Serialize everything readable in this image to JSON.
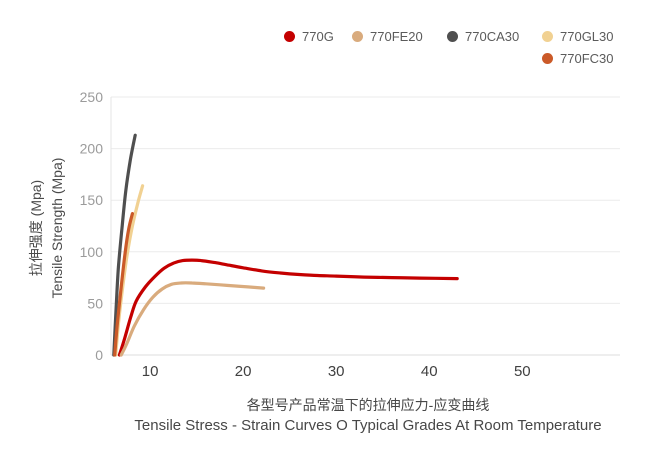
{
  "chart_data": {
    "type": "line",
    "title_zh": "各型号产品常温下的拉伸应力-应变曲线",
    "title_en": "Tensile Stress - Strain Curves O Typical Grades At Room Temperature",
    "ylabel_zh": "拉伸强度 (Mpa)",
    "ylabel_en": "Tensile Strength (Mpa)",
    "xlabel": "",
    "xlim": [
      5.8,
      60.5
    ],
    "ylim": [
      0,
      250
    ],
    "x_ticks": [
      10,
      20,
      30,
      40,
      50
    ],
    "y_ticks": [
      0,
      50,
      100,
      150,
      200,
      250
    ],
    "grid": true,
    "legend_position": "top-right",
    "series": [
      {
        "name": "770G",
        "color": "#c40000",
        "points": [
          [
            6.7,
            0
          ],
          [
            7.2,
            14
          ],
          [
            7.9,
            36
          ],
          [
            8.5,
            52
          ],
          [
            9.5,
            66
          ],
          [
            10.5,
            76
          ],
          [
            11.5,
            84
          ],
          [
            12.5,
            89
          ],
          [
            13.5,
            91.5
          ],
          [
            14.5,
            92
          ],
          [
            15.5,
            91.5
          ],
          [
            17,
            89.5
          ],
          [
            18.5,
            87
          ],
          [
            20,
            84.5
          ],
          [
            22,
            81.5
          ],
          [
            24,
            79.5
          ],
          [
            26,
            78
          ],
          [
            28,
            77
          ],
          [
            30,
            76.5
          ],
          [
            33,
            75.5
          ],
          [
            36,
            75
          ],
          [
            39,
            74.5
          ],
          [
            43,
            74
          ]
        ]
      },
      {
        "name": "770FE20",
        "color": "#d9ab7d",
        "points": [
          [
            6.9,
            0
          ],
          [
            7.5,
            11
          ],
          [
            8.3,
            28
          ],
          [
            9.3,
            44
          ],
          [
            10.3,
            56
          ],
          [
            11.3,
            64
          ],
          [
            12.3,
            68.5
          ],
          [
            13.3,
            69.8
          ],
          [
            14.5,
            69.8
          ],
          [
            16,
            69
          ],
          [
            17.5,
            68
          ],
          [
            19,
            67
          ],
          [
            20.5,
            66
          ],
          [
            22.2,
            64.8
          ]
        ]
      },
      {
        "name": "770CA30",
        "color": "#4f4f4f",
        "points": [
          [
            6.1,
            0
          ],
          [
            6.35,
            45
          ],
          [
            6.6,
            85
          ],
          [
            7.0,
            125
          ],
          [
            7.4,
            160
          ],
          [
            7.9,
            190
          ],
          [
            8.4,
            213
          ]
        ]
      },
      {
        "name": "770GL30",
        "color": "#f1d192",
        "points": [
          [
            6.3,
            0
          ],
          [
            6.6,
            30
          ],
          [
            7.0,
            62
          ],
          [
            7.5,
            95
          ],
          [
            8.1,
            125
          ],
          [
            8.7,
            148
          ],
          [
            9.2,
            164
          ]
        ]
      },
      {
        "name": "770FC30",
        "color": "#cb5a28",
        "points": [
          [
            6.2,
            0
          ],
          [
            6.5,
            32
          ],
          [
            6.9,
            66
          ],
          [
            7.3,
            98
          ],
          [
            7.7,
            122
          ],
          [
            8.1,
            137
          ]
        ]
      }
    ],
    "style": {
      "grid_color": "#ebebeb",
      "zero_line_color": "#dcdcdc",
      "axis_line_color": "#e5e5e5",
      "y_tick_color": "#9b9b9b",
      "x_tick_color": "#404040"
    }
  }
}
